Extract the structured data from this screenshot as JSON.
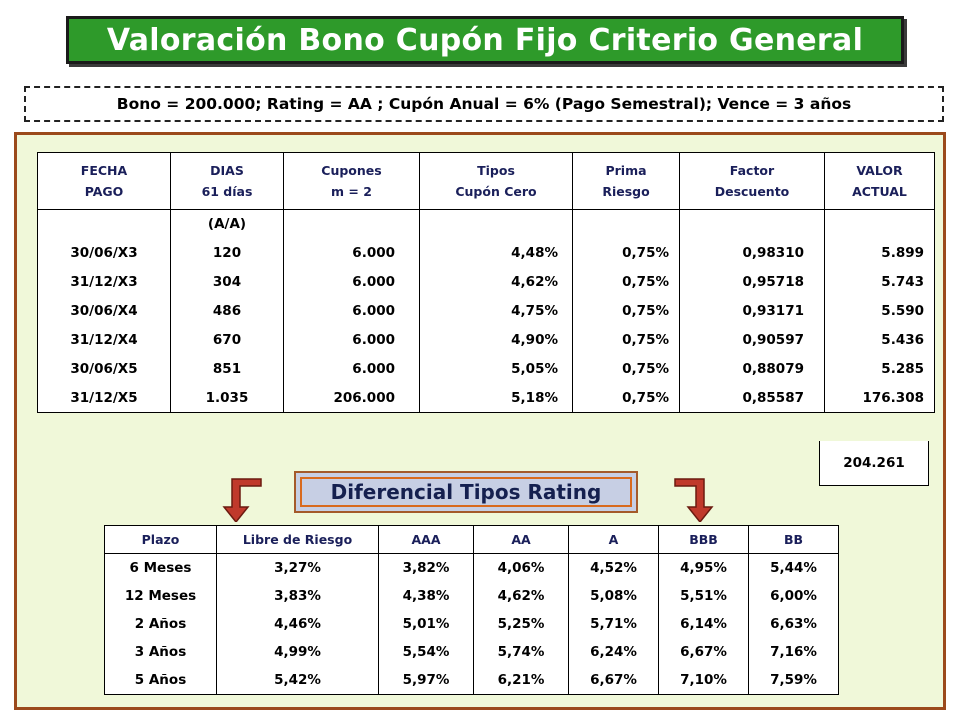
{
  "title": "Valoración Bono Cupón Fijo Criterio General",
  "subtitle": "Bono = 200.000; Rating = AA ; Cupón Anual = 6% (Pago Semestral); Vence = 3 años",
  "main_table": {
    "headers": [
      {
        "l1": "FECHA",
        "l2": "PAGO"
      },
      {
        "l1": "DIAS",
        "l2": "61 días"
      },
      {
        "l1": "Cupones",
        "l2": "m = 2"
      },
      {
        "l1": "Tipos",
        "l2": "Cupón Cero"
      },
      {
        "l1": "Prima",
        "l2": "Riesgo"
      },
      {
        "l1": "Factor",
        "l2": "Descuento"
      },
      {
        "l1": "VALOR",
        "l2": "ACTUAL"
      }
    ],
    "day_basis": "(A/A)",
    "rows": [
      [
        "30/06/X3",
        "120",
        "6.000",
        "4,48%",
        "0,75%",
        "0,98310",
        "5.899"
      ],
      [
        "31/12/X3",
        "304",
        "6.000",
        "4,62%",
        "0,75%",
        "0,95718",
        "5.743"
      ],
      [
        "30/06/X4",
        "486",
        "6.000",
        "4,75%",
        "0,75%",
        "0,93171",
        "5.590"
      ],
      [
        "31/12/X4",
        "670",
        "6.000",
        "4,90%",
        "0,75%",
        "0,90597",
        "5.436"
      ],
      [
        "30/06/X5",
        "851",
        "6.000",
        "5,05%",
        "0,75%",
        "0,88079",
        "5.285"
      ],
      [
        "31/12/X5",
        "1.035",
        "206.000",
        "5,18%",
        "0,75%",
        "0,85587",
        "176.308"
      ]
    ],
    "total": "204.261"
  },
  "rating_banner": "Diferencial Tipos Rating",
  "rating_table": {
    "headers": [
      "Plazo",
      "Libre de Riesgo",
      "AAA",
      "AA",
      "A",
      "BBB",
      "BB"
    ],
    "rows": [
      [
        "6 Meses",
        "3,27%",
        "3,82%",
        "4,06%",
        "4,52%",
        "4,95%",
        "5,44%"
      ],
      [
        "12 Meses",
        "3,83%",
        "4,38%",
        "4,62%",
        "5,08%",
        "5,51%",
        "6,00%"
      ],
      [
        "2 Años",
        "4,46%",
        "5,01%",
        "5,25%",
        "5,71%",
        "6,14%",
        "6,63%"
      ],
      [
        "3 Años",
        "4,99%",
        "5,54%",
        "5,74%",
        "6,24%",
        "6,67%",
        "7,16%"
      ],
      [
        "5 Años",
        "5,42%",
        "5,97%",
        "6,21%",
        "6,67%",
        "7,10%",
        "7,59%"
      ]
    ]
  },
  "colors": {
    "title_bg": "#2e9a2a",
    "panel_bg": "#f0f8d9",
    "panel_border": "#9b4a1c",
    "header_text": "#1a1f5a",
    "arrow_fill": "#c0392b",
    "banner_bg": "#c7cfe4"
  },
  "icons": [
    "arrow-down-left-icon",
    "arrow-down-right-icon"
  ]
}
